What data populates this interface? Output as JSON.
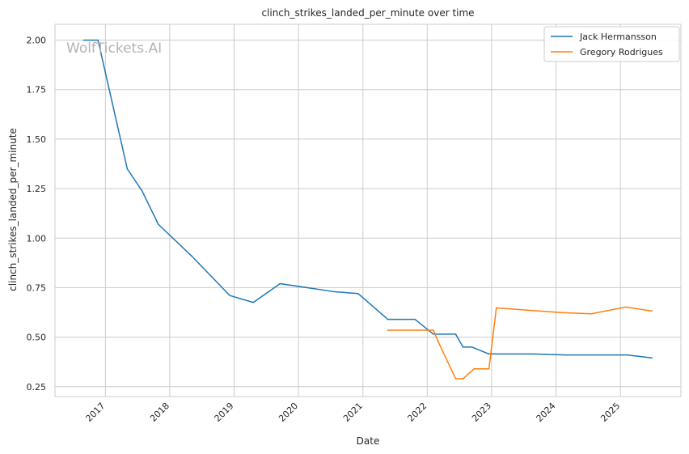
{
  "chart_data": {
    "type": "line",
    "title": "clinch_strikes_landed_per_minute over time",
    "xlabel": "Date",
    "ylabel": "clinch_strikes_landed_per_minute",
    "watermark": "WolfTickets.AI",
    "x_ticks": [
      "2017",
      "2018",
      "2019",
      "2020",
      "2021",
      "2022",
      "2023",
      "2024",
      "2025"
    ],
    "y_ticks": [
      "0.25",
      "0.50",
      "0.75",
      "1.00",
      "1.25",
      "1.50",
      "1.75",
      "2.00"
    ],
    "xlim": [
      "2016-03-21",
      "2025-12-10"
    ],
    "ylim": [
      0.2,
      2.08
    ],
    "grid": true,
    "legend_position": "top-right",
    "series": [
      {
        "name": "Jack Hermansson",
        "color": "#1f77b4",
        "points": [
          {
            "x": "2016-09-01",
            "y": 2.0
          },
          {
            "x": "2016-11-20",
            "y": 2.0
          },
          {
            "x": "2017-05-05",
            "y": 1.35
          },
          {
            "x": "2017-07-27",
            "y": 1.24
          },
          {
            "x": "2017-10-28",
            "y": 1.07
          },
          {
            "x": "2018-05-05",
            "y": 0.91
          },
          {
            "x": "2018-12-08",
            "y": 0.71
          },
          {
            "x": "2019-04-20",
            "y": 0.675
          },
          {
            "x": "2019-09-19",
            "y": 0.77
          },
          {
            "x": "2020-07-18",
            "y": 0.73
          },
          {
            "x": "2020-12-05",
            "y": 0.72
          },
          {
            "x": "2021-05-22",
            "y": 0.59
          },
          {
            "x": "2021-10-23",
            "y": 0.59
          },
          {
            "x": "2022-02-05",
            "y": 0.515
          },
          {
            "x": "2022-06-11",
            "y": 0.515
          },
          {
            "x": "2022-07-23",
            "y": 0.45
          },
          {
            "x": "2022-09-10",
            "y": 0.45
          },
          {
            "x": "2022-12-17",
            "y": 0.415
          },
          {
            "x": "2023-08-26",
            "y": 0.415
          },
          {
            "x": "2024-02-24",
            "y": 0.41
          },
          {
            "x": "2025-02-08",
            "y": 0.41
          },
          {
            "x": "2025-06-28",
            "y": 0.395
          }
        ]
      },
      {
        "name": "Gregory Rodrigues",
        "color": "#ff7f0e",
        "points": [
          {
            "x": "2021-05-22",
            "y": 0.535
          },
          {
            "x": "2021-11-13",
            "y": 0.535
          },
          {
            "x": "2022-02-05",
            "y": 0.535
          },
          {
            "x": "2022-03-05",
            "y": 0.475
          },
          {
            "x": "2022-06-11",
            "y": 0.29
          },
          {
            "x": "2022-07-23",
            "y": 0.29
          },
          {
            "x": "2022-09-24",
            "y": 0.34
          },
          {
            "x": "2022-12-17",
            "y": 0.34
          },
          {
            "x": "2023-01-28",
            "y": 0.648
          },
          {
            "x": "2023-08-05",
            "y": 0.635
          },
          {
            "x": "2024-02-01",
            "y": 0.624
          },
          {
            "x": "2024-07-20",
            "y": 0.618
          },
          {
            "x": "2025-02-01",
            "y": 0.652
          },
          {
            "x": "2025-06-28",
            "y": 0.632
          }
        ]
      }
    ]
  }
}
